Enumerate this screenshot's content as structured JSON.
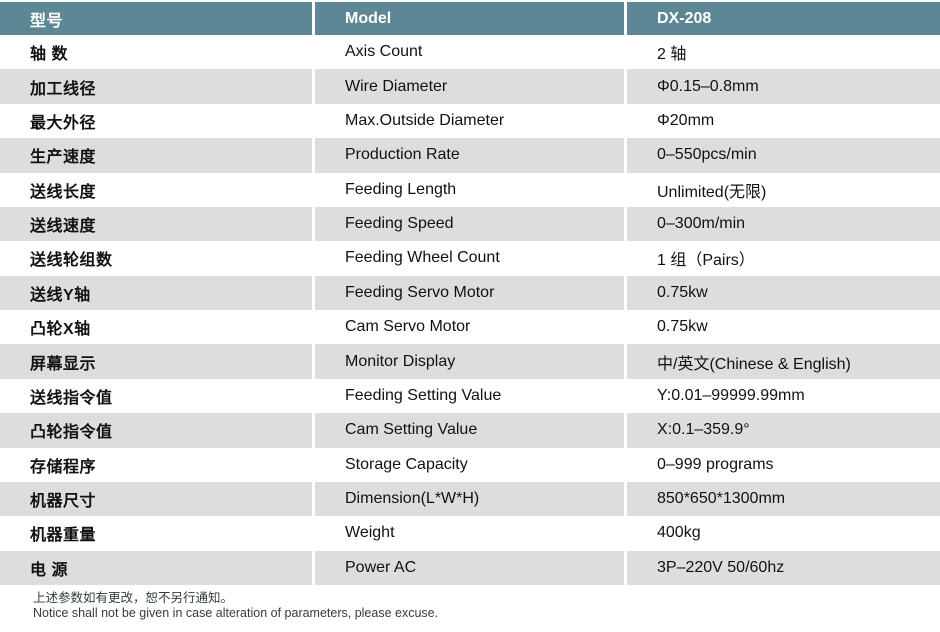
{
  "table": {
    "header": {
      "col1": "型号",
      "col2": "Model",
      "col3": "DX-208"
    },
    "rows": [
      {
        "cn": "轴  数",
        "en": "Axis Count",
        "value": "2 轴"
      },
      {
        "cn": "加工线径",
        "en": "Wire Diameter",
        "value": "Φ0.15–0.8mm"
      },
      {
        "cn": "最大外径",
        "en": "Max.Outside Diameter",
        "value": "Φ20mm"
      },
      {
        "cn": "生产速度",
        "en": "Production Rate",
        "value": "0–550pcs/min"
      },
      {
        "cn": "送线长度",
        "en": "Feeding Length",
        "value": "Unlimited(无限)"
      },
      {
        "cn": "送线速度",
        "en": "Feeding Speed",
        "value": "0–300m/min"
      },
      {
        "cn": "送线轮组数",
        "en": "Feeding Wheel Count",
        "value": "1 组（Pairs）"
      },
      {
        "cn": "送线Y轴",
        "en": "Feeding Servo Motor",
        "value": "0.75kw"
      },
      {
        "cn": "凸轮X轴",
        "en": "Cam Servo Motor",
        "value": "0.75kw"
      },
      {
        "cn": "屏幕显示",
        "en": "Monitor Display",
        "value": "中/英文(Chinese & English)"
      },
      {
        "cn": "送线指令值",
        "en": "Feeding Setting Value",
        "value": "Y:0.01–99999.99mm"
      },
      {
        "cn": "凸轮指令值",
        "en": "Cam Setting Value",
        "value": "X:0.1–359.9°"
      },
      {
        "cn": "存储程序",
        "en": "Storage Capacity",
        "value": "0–999 programs"
      },
      {
        "cn": "机器尺寸",
        "en": "Dimension(L*W*H)",
        "value": "850*650*1300mm"
      },
      {
        "cn": "机器重量",
        "en": "Weight",
        "value": "400kg"
      },
      {
        "cn": "电  源",
        "en": "Power AC",
        "value": "3P–220V 50/60hz"
      }
    ]
  },
  "footer": {
    "line1": "上述参数如有更改，恕不另行通知。",
    "line2": "Notice shall not be given in case alteration of parameters, please excuse."
  },
  "colors": {
    "header_bg": "#5d8795",
    "row_alt_bg": "#dcdddd",
    "header_text": "#ffffff",
    "body_text": "#111111",
    "footer_text": "#323d3d"
  }
}
